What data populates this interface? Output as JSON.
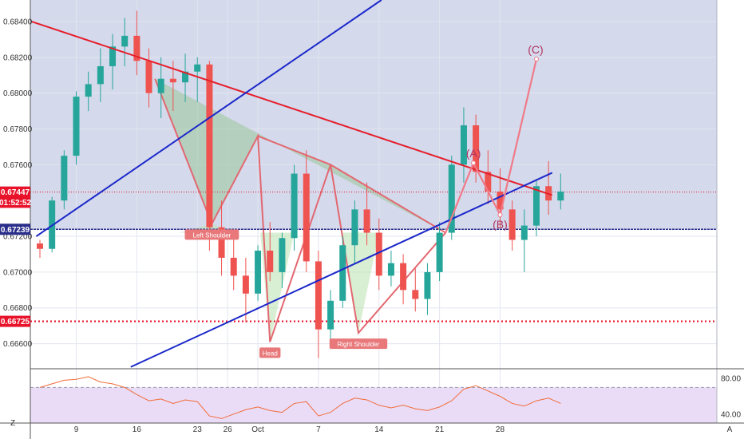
{
  "chart_data": {
    "type": "candlestick",
    "price_axis": {
      "ticks": [
        "0.68400",
        "0.68200",
        "0.68000",
        "0.67800",
        "0.67600",
        "0.67200",
        "0.67000",
        "0.66800",
        "0.66600"
      ],
      "tick_values": [
        0.684,
        0.682,
        0.68,
        0.678,
        0.676,
        0.672,
        0.67,
        0.668,
        0.666
      ],
      "range": [
        0.6646,
        0.6852
      ]
    },
    "price_tags": [
      {
        "label": "0.67447",
        "value": 0.67447,
        "color": "#e8132b"
      },
      {
        "label": "01:52:52",
        "value": 0.6739,
        "color": "#e8132b"
      },
      {
        "label": "0.67239",
        "value": 0.67239,
        "color": "#2a2e8a"
      },
      {
        "label": "0.66725",
        "value": 0.66725,
        "color": "#e8132b"
      }
    ],
    "time_axis": {
      "labels": [
        "9",
        "16",
        "23",
        "26",
        "Oct",
        "7",
        "14",
        "21",
        "28"
      ],
      "positions": [
        3,
        8,
        13,
        15.5,
        18,
        23,
        28,
        33,
        38
      ]
    },
    "candles": [
      [
        0.6716,
        0.6718,
        0.6708,
        0.6713
      ],
      [
        0.6713,
        0.6742,
        0.6711,
        0.674
      ],
      [
        0.674,
        0.6768,
        0.6735,
        0.6765
      ],
      [
        0.6765,
        0.6801,
        0.676,
        0.6798
      ],
      [
        0.6798,
        0.6812,
        0.679,
        0.6805
      ],
      [
        0.6805,
        0.6825,
        0.6795,
        0.6815
      ],
      [
        0.6815,
        0.6833,
        0.6802,
        0.6826
      ],
      [
        0.6826,
        0.6842,
        0.6815,
        0.6832
      ],
      [
        0.6832,
        0.6846,
        0.681,
        0.6818
      ],
      [
        0.6818,
        0.6825,
        0.6792,
        0.68
      ],
      [
        0.68,
        0.682,
        0.6786,
        0.6808
      ],
      [
        0.6808,
        0.6818,
        0.679,
        0.6806
      ],
      [
        0.6806,
        0.6822,
        0.6795,
        0.6812
      ],
      [
        0.6812,
        0.682,
        0.6795,
        0.6816
      ],
      [
        0.6816,
        0.6818,
        0.6712,
        0.6725
      ],
      [
        0.6725,
        0.674,
        0.6698,
        0.6708
      ],
      [
        0.6708,
        0.672,
        0.669,
        0.6698
      ],
      [
        0.6698,
        0.6708,
        0.6672,
        0.6688
      ],
      [
        0.6688,
        0.6715,
        0.6684,
        0.6712
      ],
      [
        0.6712,
        0.6728,
        0.6695,
        0.67
      ],
      [
        0.67,
        0.6722,
        0.6691,
        0.6719
      ],
      [
        0.6719,
        0.676,
        0.6712,
        0.6755
      ],
      [
        0.6755,
        0.6768,
        0.67,
        0.6706
      ],
      [
        0.6706,
        0.6712,
        0.6652,
        0.6668
      ],
      [
        0.6668,
        0.669,
        0.666,
        0.6684
      ],
      [
        0.6684,
        0.672,
        0.668,
        0.6715
      ],
      [
        0.6715,
        0.674,
        0.6705,
        0.6735
      ],
      [
        0.6735,
        0.675,
        0.6715,
        0.6722
      ],
      [
        0.6722,
        0.673,
        0.669,
        0.6698
      ],
      [
        0.6698,
        0.6712,
        0.6692,
        0.6705
      ],
      [
        0.6705,
        0.671,
        0.6682,
        0.669
      ],
      [
        0.669,
        0.6702,
        0.6678,
        0.6685
      ],
      [
        0.6685,
        0.6705,
        0.6676,
        0.67
      ],
      [
        0.67,
        0.6728,
        0.6695,
        0.6722
      ],
      [
        0.6722,
        0.6765,
        0.6718,
        0.676
      ],
      [
        0.676,
        0.6792,
        0.675,
        0.6782
      ],
      [
        0.6782,
        0.6788,
        0.675,
        0.6756
      ],
      [
        0.6756,
        0.6768,
        0.6738,
        0.6745
      ],
      [
        0.6745,
        0.6758,
        0.6725,
        0.6735
      ],
      [
        0.6735,
        0.674,
        0.6712,
        0.6718
      ],
      [
        0.6718,
        0.6735,
        0.67,
        0.6726
      ],
      [
        0.6726,
        0.6752,
        0.672,
        0.6748
      ],
      [
        0.6748,
        0.6762,
        0.6732,
        0.674
      ],
      [
        0.674,
        0.6755,
        0.6735,
        0.6745
      ]
    ],
    "lines": [
      {
        "name": "upper-trendline",
        "color": "#e51f2b",
        "points": [
          [
            -0.7,
            0.684
          ],
          [
            42.3,
            0.6743
          ]
        ]
      },
      {
        "name": "channel-line",
        "color": "#1b27c9",
        "points": [
          [
            -0.3,
            0.672
          ],
          [
            28.2,
            0.6852
          ]
        ]
      },
      {
        "name": "lower-trendline",
        "color": "#1b27c9",
        "points": [
          [
            7.5,
            0.6647
          ],
          [
            42.3,
            0.67555
          ]
        ]
      }
    ],
    "horizontal_levels": [
      {
        "value": 0.67239,
        "color": "#2a2e8a",
        "style": "solid"
      },
      {
        "value": 0.66725,
        "color": "#e8132b",
        "style": "dotted"
      },
      {
        "value": 0.67447,
        "color": "#e8132b",
        "style": "dotted"
      }
    ],
    "patterns": [
      {
        "fill": "#9bc69b",
        "points": [
          [
            9.5,
            0.6808
          ],
          [
            14.2,
            0.6727
          ],
          [
            18.0,
            0.6776
          ],
          [
            24.0,
            0.676
          ],
          [
            33.5,
            0.6722
          ]
        ]
      },
      {
        "fill": "#b9e2ae",
        "points": [
          [
            11.5,
            0.6722
          ],
          [
            14.2,
            0.6727
          ],
          [
            16.0,
            0.6722
          ]
        ]
      },
      {
        "fill": "#b9e2ae",
        "points": [
          [
            18.2,
            0.6722
          ],
          [
            19.0,
            0.6661
          ],
          [
            21.0,
            0.6722
          ]
        ]
      },
      {
        "fill": "#b9e2ae",
        "points": [
          [
            25.0,
            0.6722
          ],
          [
            26.3,
            0.6666
          ],
          [
            28.0,
            0.6722
          ]
        ]
      }
    ],
    "pattern_outline": {
      "color": "#e26870",
      "points": [
        [
          9.5,
          0.6808
        ],
        [
          14.2,
          0.6727
        ],
        [
          18.0,
          0.6776
        ],
        [
          19.0,
          0.6661
        ],
        [
          24.0,
          0.676
        ],
        [
          26.3,
          0.6666
        ],
        [
          33.5,
          0.6722
        ]
      ]
    },
    "abc_wave": {
      "color": "#f07a88",
      "points": [
        [
          33.5,
          0.6722
        ],
        [
          35.8,
          0.6761
        ],
        [
          38.0,
          0.6732
        ],
        [
          41.0,
          0.6819
        ]
      ]
    },
    "annotations": [
      {
        "label": "Left Shoulder",
        "x": 14.2,
        "y": 0.6727,
        "color": "#e8787a"
      },
      {
        "label": "Head",
        "x": 19.0,
        "y": 0.6661,
        "color": "#e8787a"
      },
      {
        "label": "Right Shoulder",
        "x": 26.3,
        "y": 0.6666,
        "color": "#e8787a"
      }
    ],
    "wave_labels": [
      {
        "label": "(A)",
        "x": 35.8,
        "y": 0.6761
      },
      {
        "label": "(B)",
        "x": 38.0,
        "y": 0.6732
      },
      {
        "label": "(C)",
        "x": 41.0,
        "y": 0.6819
      }
    ],
    "rsi": {
      "ticks": [
        "80.00",
        "40.00"
      ],
      "tick_values": [
        80,
        40
      ],
      "range": [
        30,
        90
      ],
      "band": [
        70,
        30
      ],
      "values": [
        70,
        74,
        78,
        79,
        82,
        76,
        74,
        70,
        62,
        55,
        57,
        52,
        56,
        54,
        38,
        35,
        40,
        45,
        48,
        44,
        42,
        52,
        54,
        38,
        42,
        52,
        58,
        56,
        50,
        47,
        50,
        46,
        44,
        48,
        55,
        68,
        72,
        66,
        60,
        52,
        49,
        55,
        58,
        52
      ]
    },
    "corner_labels": [
      "Z",
      "A"
    ]
  }
}
